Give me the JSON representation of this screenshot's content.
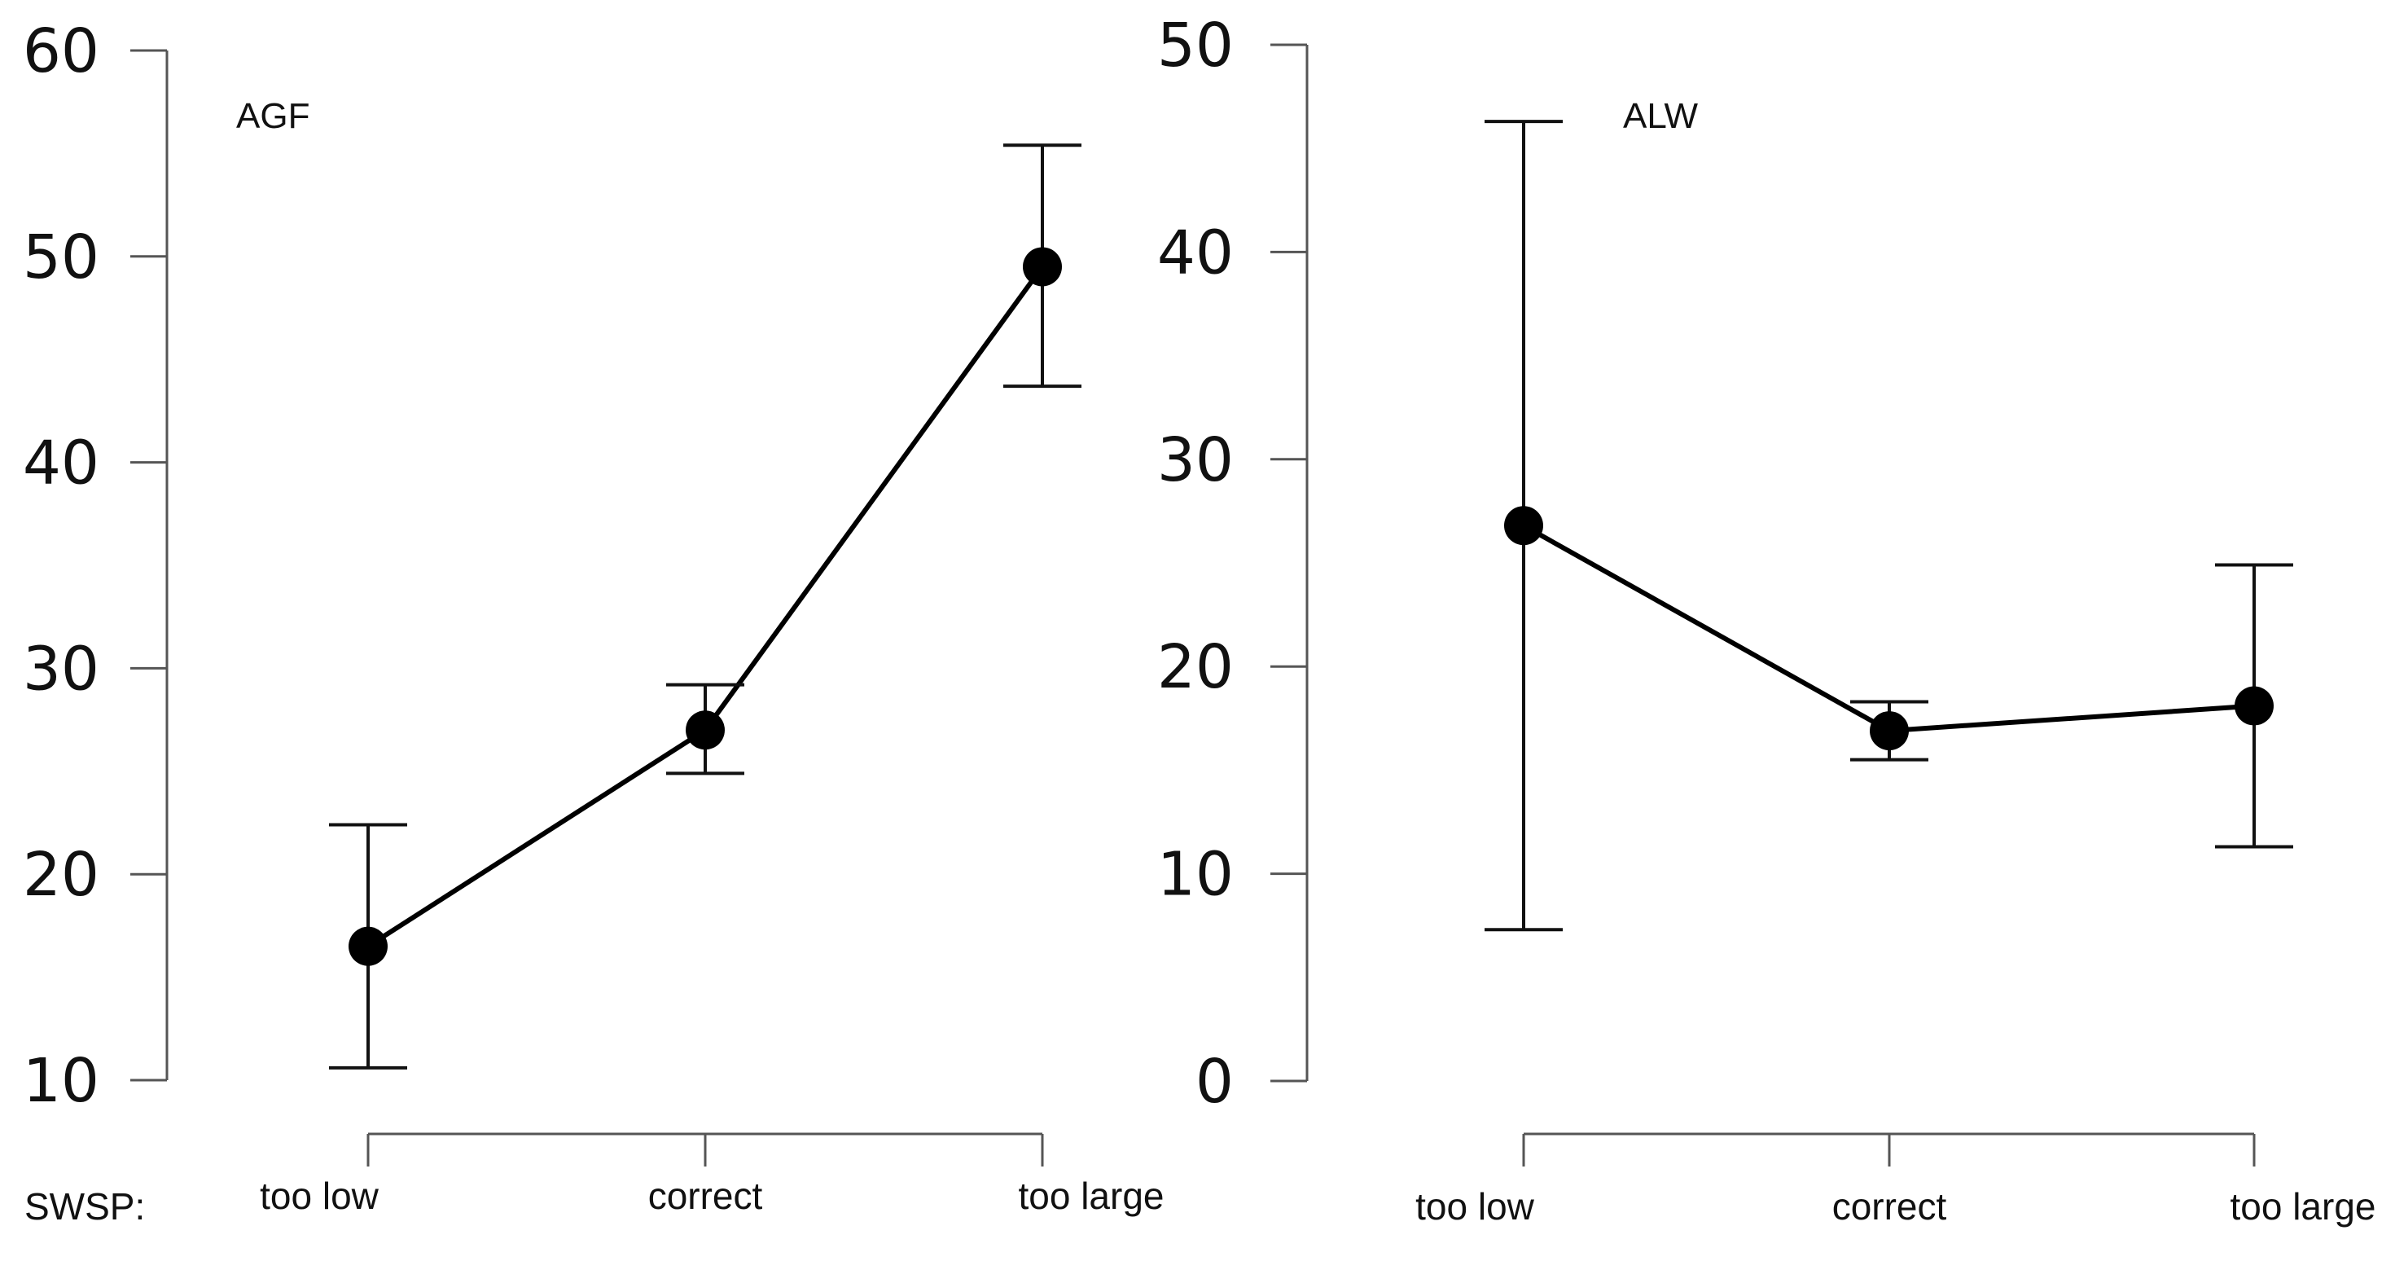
{
  "x_prefix": "SWSP:",
  "chart_data": [
    {
      "type": "line",
      "title": "AGF",
      "categories": [
        "too low",
        "correct",
        "too large"
      ],
      "ylim": [
        10,
        60
      ],
      "yticks": [
        10,
        20,
        30,
        40,
        50,
        60
      ],
      "grid": false,
      "series": [
        {
          "values": [
            16.5,
            27,
            49.5
          ],
          "lower": [
            10.6,
            24.9,
            43.7
          ],
          "upper": [
            22.4,
            29.2,
            55.4
          ]
        }
      ]
    },
    {
      "type": "line",
      "title": "ALW",
      "categories": [
        "too low",
        "correct",
        "too large"
      ],
      "ylim": [
        0,
        50
      ],
      "yticks": [
        0,
        10,
        20,
        30,
        40,
        50
      ],
      "grid": false,
      "series": [
        {
          "values": [
            26.8,
            16.9,
            18.1
          ],
          "lower": [
            7.3,
            15.5,
            11.3
          ],
          "upper": [
            46.3,
            18.3,
            24.9
          ]
        }
      ]
    }
  ]
}
